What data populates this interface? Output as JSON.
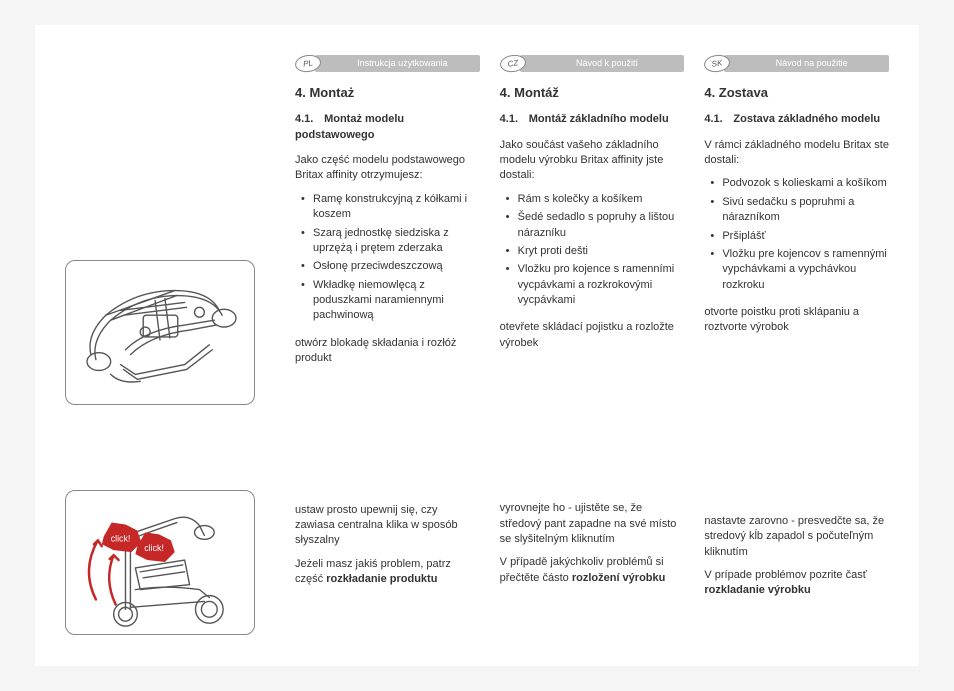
{
  "columns": [
    {
      "lang_code": "PL",
      "lang_label": "Instrukcja użytkowania",
      "section": "4. Montaż",
      "subsection_num": "4.1.",
      "subsection_title": "Montaż modelu podstawowego",
      "intro": "Jako część modelu podstawowego Britax affinity otrzymujesz:",
      "items": [
        "Ramę konstrukcyjną z kółkami i koszem",
        "Szarą jednostkę siedziska z uprzężą i prętem zderzaka",
        "Osłonę przeciwdeszczową",
        "Wkładkę niemowlęcą z poduszkami naramiennymi pachwinową"
      ],
      "step1": "otwórz blokadę składania i rozłóż produkt",
      "step2": "ustaw prosto  upewnij się, czy zawiasa centralna klika w sposób słyszalny",
      "step3_pre": "Jeżeli masz jakiś problem, patrz część ",
      "step3_bold": "rozkładanie produktu"
    },
    {
      "lang_code": "CZ",
      "lang_label": "Návod k použití",
      "section": "4. Montáž",
      "subsection_num": "4.1.",
      "subsection_title": "Montáž základního modelu",
      "intro": "Jako součást vašeho základního modelu výrobku Britax affinity jste dostali:",
      "items": [
        "Rám s kolečky a košíkem",
        "Šedé sedadlo s popruhy a lištou nárazníku",
        "Kryt proti dešti",
        "Vložku pro kojence s ramenními vycpávkami a rozkrokovými vycpávkami"
      ],
      "step1": "otevřete skládací pojistku a rozložte výrobek",
      "step2": "vyrovnejte ho - ujistěte se, že středový pant zapadne na své místo se slyšitelným kliknutím",
      "step3_pre": "V případě jakýchkoliv problémů si přečtěte částo ",
      "step3_bold": "rozložení výrobku"
    },
    {
      "lang_code": "SK",
      "lang_label": "Návod na použitie",
      "section": "4. Zostava",
      "subsection_num": "4.1.",
      "subsection_title": "Zostava základného modelu",
      "intro": "V rámci základného modelu Britax ste dostali:",
      "items": [
        "Podvozok s kolieskami a košíkom",
        "Sivú sedačku s popruhmi a nárazníkom",
        "Pršiplášť",
        "Vložku pre kojencov s ramennými vypchávkami a vypchávkou rozkroku"
      ],
      "step1": "otvorte poistku proti sklápaniu a roztvorte výrobok",
      "step2": "nastavte zarovno - presvedčte sa, že stredový kĺb zapadol s počuteľným kliknutím",
      "step3_pre": "V prípade problémov pozrite časť ",
      "step3_bold": "rozkladanie výrobku"
    }
  ],
  "click_label": "click!"
}
